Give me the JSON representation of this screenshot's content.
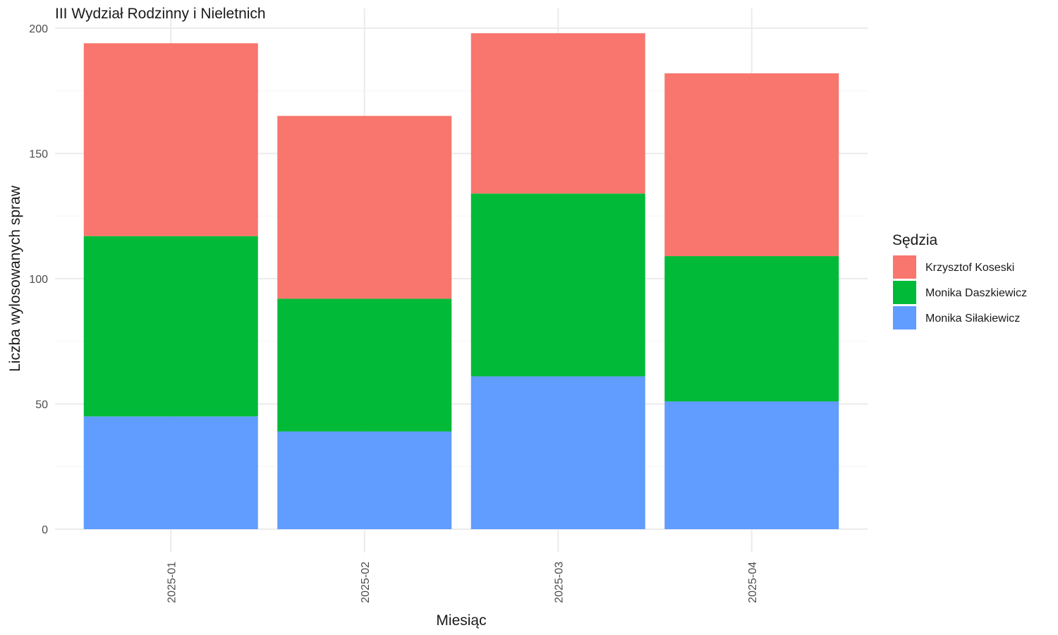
{
  "chart_data": {
    "type": "bar",
    "stacked": true,
    "title": "III Wydział Rodzinny i Nieletnich",
    "xlabel": "Miesiąc",
    "ylabel": "Liczba wylosowanych spraw",
    "categories": [
      "2025-01",
      "2025-02",
      "2025-03",
      "2025-04"
    ],
    "ylim": [
      0,
      200
    ],
    "yticks": [
      0,
      50,
      100,
      150,
      200
    ],
    "grid": true,
    "legend": {
      "title": "Sędzia",
      "position": "right"
    },
    "stack_order_bottom_to_top": [
      "Monika Siłakiewicz",
      "Monika Daszkiewicz",
      "Krzysztof Koseski"
    ],
    "series": [
      {
        "name": "Krzysztof Koseski",
        "color": "#F8766D",
        "values": [
          77,
          73,
          64,
          73
        ]
      },
      {
        "name": "Monika Daszkiewicz",
        "color": "#00BA38",
        "values": [
          72,
          53,
          73,
          58
        ]
      },
      {
        "name": "Monika Siłakiewicz",
        "color": "#619CFF",
        "values": [
          45,
          39,
          61,
          51
        ]
      }
    ]
  }
}
